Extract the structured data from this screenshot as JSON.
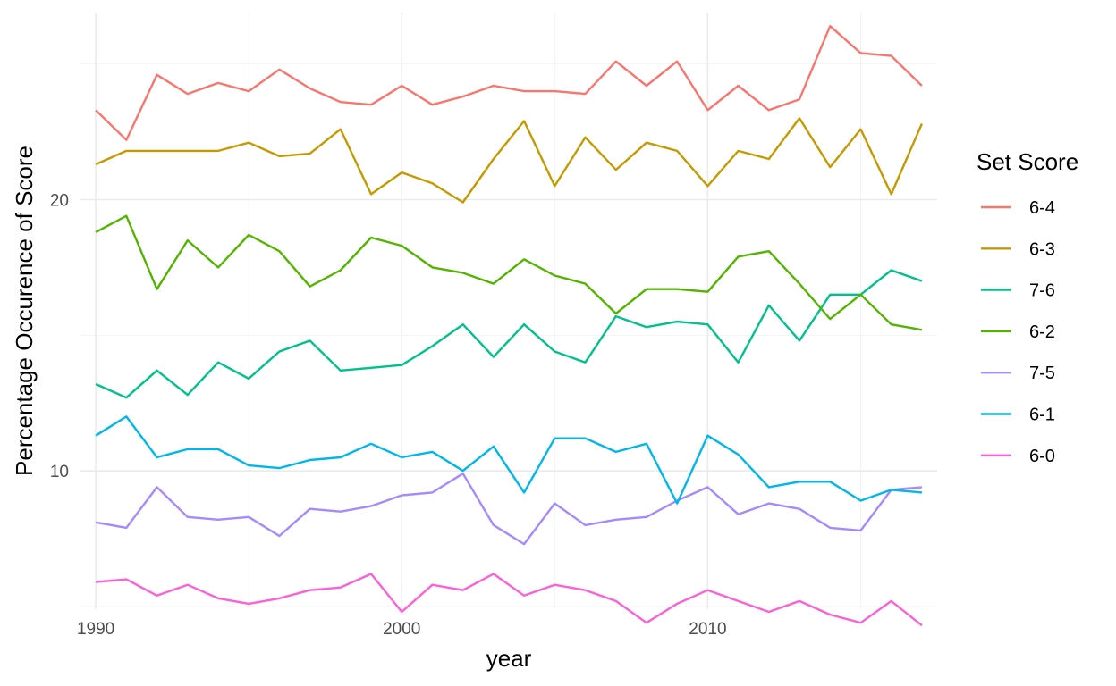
{
  "chart_data": {
    "type": "line",
    "xlabel": "year",
    "ylabel": "Percentage Occurence of Score",
    "legend_title": "Set Score",
    "legend_position": "right",
    "grid": true,
    "xlim": [
      1989.5,
      2017.5
    ],
    "ylim": [
      4.9,
      26.9
    ],
    "x_ticks": [
      1990,
      2000,
      2010
    ],
    "y_ticks": [
      10,
      20
    ],
    "x": [
      1990,
      1991,
      1992,
      1993,
      1994,
      1995,
      1996,
      1997,
      1998,
      1999,
      2000,
      2001,
      2002,
      2003,
      2004,
      2005,
      2006,
      2007,
      2008,
      2009,
      2010,
      2011,
      2012,
      2013,
      2014,
      2015,
      2016,
      2017
    ],
    "series": [
      {
        "name": "6-4",
        "color": "#F8766D",
        "values": [
          23.3,
          22.2,
          24.6,
          23.9,
          24.3,
          24.0,
          24.8,
          24.1,
          23.6,
          23.5,
          24.2,
          23.5,
          23.8,
          24.2,
          24.0,
          24.0,
          23.9,
          25.1,
          24.2,
          25.1,
          23.3,
          24.2,
          23.3,
          23.7,
          26.4,
          25.4,
          25.3,
          24.2
        ]
      },
      {
        "name": "6-3",
        "color": "#C49A00",
        "values": [
          21.3,
          21.8,
          21.8,
          21.8,
          21.8,
          22.1,
          21.6,
          21.7,
          22.6,
          20.2,
          21.0,
          20.6,
          19.9,
          21.5,
          22.9,
          20.5,
          22.3,
          21.1,
          22.1,
          21.8,
          20.5,
          21.8,
          21.5,
          23.0,
          21.2,
          22.6,
          20.2,
          22.8
        ]
      },
      {
        "name": "7-6",
        "color": "#00C08B",
        "values": [
          13.2,
          12.7,
          13.7,
          12.8,
          14.0,
          13.4,
          14.4,
          14.8,
          13.7,
          13.8,
          13.9,
          14.6,
          15.4,
          14.2,
          15.4,
          14.4,
          14.0,
          15.7,
          15.3,
          15.5,
          15.4,
          14.0,
          16.1,
          14.8,
          16.5,
          16.5,
          17.4,
          17.0
        ]
      },
      {
        "name": "6-2",
        "color": "#53B400",
        "values": [
          18.8,
          19.4,
          16.7,
          18.5,
          17.5,
          18.7,
          18.1,
          16.8,
          17.4,
          18.6,
          18.3,
          17.5,
          17.3,
          16.9,
          17.8,
          17.2,
          16.9,
          15.8,
          16.7,
          16.7,
          16.6,
          17.9,
          18.1,
          16.9,
          15.6,
          16.5,
          15.4,
          15.2
        ]
      },
      {
        "name": "7-5",
        "color": "#A58AFF",
        "values": [
          8.1,
          7.9,
          9.4,
          8.3,
          8.2,
          8.3,
          7.6,
          8.6,
          8.5,
          8.7,
          9.1,
          9.2,
          9.9,
          8.0,
          7.3,
          8.8,
          8.0,
          8.2,
          8.3,
          8.9,
          9.4,
          8.4,
          8.8,
          8.6,
          7.9,
          7.8,
          9.3,
          9.4
        ]
      },
      {
        "name": "6-1",
        "color": "#00B6EB",
        "values": [
          11.3,
          12.0,
          10.5,
          10.8,
          10.8,
          10.2,
          10.1,
          10.4,
          10.5,
          11.0,
          10.5,
          10.7,
          10.0,
          10.9,
          9.2,
          11.2,
          11.2,
          10.7,
          11.0,
          8.8,
          11.3,
          10.6,
          9.4,
          9.6,
          9.6,
          8.9,
          9.3,
          9.2
        ]
      },
      {
        "name": "6-0",
        "color": "#FB61D7",
        "values": [
          5.9,
          6.0,
          5.4,
          5.8,
          5.3,
          5.1,
          5.3,
          5.6,
          5.7,
          6.2,
          4.8,
          5.8,
          5.6,
          6.2,
          5.4,
          5.8,
          5.6,
          5.2,
          4.4,
          5.1,
          5.6,
          5.2,
          4.8,
          5.2,
          4.7,
          4.4,
          5.2,
          4.3
        ]
      }
    ]
  }
}
